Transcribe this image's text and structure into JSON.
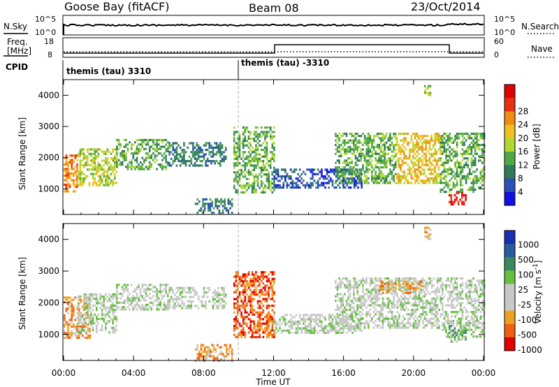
{
  "header": {
    "station": "Goose Bay (fitACF)",
    "beam": "Beam 08",
    "date": "23/Oct/2014"
  },
  "noise_panel": {
    "left_label": "N.Sky",
    "right_label": "N.Search",
    "left_ticks": [
      "10^5",
      "10^0"
    ],
    "right_ticks": [
      "10^5",
      "10^0"
    ]
  },
  "freq_panel": {
    "left_label_line1": "Freq.",
    "left_label_line2": "[MHz]",
    "right_label": "Nave",
    "left_ticks": [
      "18",
      "8"
    ],
    "right_ticks": [
      "60",
      "0"
    ]
  },
  "cpid_panel": {
    "label": "CPID",
    "segments": [
      {
        "text": "themis (tau) 3310",
        "start_hour": 0
      },
      {
        "text": "themis (tau) -3310",
        "start_hour": 10
      }
    ]
  },
  "colors": {
    "power": [
      "#1010e0",
      "#2c4fb8",
      "#2f7a5a",
      "#4fa848",
      "#b0d830",
      "#f0c020",
      "#f08c10",
      "#e83010",
      "#e00000"
    ],
    "velocity": [
      "#1a2fb0",
      "#2a5aa0",
      "#3a8a60",
      "#66c040",
      "#c8c8c8",
      "#c8c8c8",
      "#f0a020",
      "#f06010",
      "#e00000"
    ]
  },
  "chart_data": [
    {
      "type": "heatmap",
      "name": "power",
      "ylabel": "Slant Range [km]",
      "ylim": [
        180,
        4500
      ],
      "xlim": [
        0,
        24
      ],
      "y_ticks": [
        1000,
        2000,
        3000,
        4000
      ],
      "x_ticks": [
        "00:00",
        "04:00",
        "08:00",
        "12:00",
        "16:00",
        "20:00",
        "00:00"
      ],
      "colorbar_label": "Power [dB]",
      "colorbar_ticks": [
        "4",
        "8",
        "12",
        "16",
        "20",
        "24",
        "28"
      ],
      "echo_bands": [
        {
          "start": 0.0,
          "end": 0.8,
          "low": 900,
          "high": 2100,
          "level": 6
        },
        {
          "start": 0.8,
          "end": 3.0,
          "low": 1100,
          "high": 2300,
          "level": 4
        },
        {
          "start": 3.0,
          "end": 6.0,
          "low": 1600,
          "high": 2600,
          "level": 3
        },
        {
          "start": 6.0,
          "end": 9.3,
          "low": 1750,
          "high": 2500,
          "level": 2
        },
        {
          "start": 7.5,
          "end": 9.6,
          "low": 200,
          "high": 700,
          "level": 2
        },
        {
          "start": 9.7,
          "end": 12.0,
          "low": 900,
          "high": 3000,
          "level": 3
        },
        {
          "start": 12.0,
          "end": 17.0,
          "low": 1050,
          "high": 1650,
          "level": 1
        },
        {
          "start": 15.5,
          "end": 19.0,
          "low": 1200,
          "high": 2800,
          "level": 3
        },
        {
          "start": 19.0,
          "end": 21.5,
          "low": 1200,
          "high": 2800,
          "level": 5
        },
        {
          "start": 21.5,
          "end": 24.0,
          "low": 900,
          "high": 2800,
          "level": 3
        },
        {
          "start": 22.0,
          "end": 23.0,
          "low": 500,
          "high": 900,
          "level": 8
        },
        {
          "start": 20.6,
          "end": 21.0,
          "low": 4000,
          "high": 4400,
          "level": 4
        }
      ]
    },
    {
      "type": "heatmap",
      "name": "velocity",
      "ylabel": "Slant Range [km]",
      "xlabel": "Time UT",
      "ylim": [
        180,
        4500
      ],
      "xlim": [
        0,
        24
      ],
      "y_ticks": [
        1000,
        2000,
        3000,
        4000
      ],
      "x_ticks": [
        "00:00",
        "04:00",
        "08:00",
        "12:00",
        "16:00",
        "20:00",
        "00:00"
      ],
      "colorbar_label": "Velocity [m s^-1]",
      "colorbar_ticks": [
        "1000",
        "500",
        "100",
        "25",
        "-25",
        "-100",
        "-500",
        "-1000"
      ],
      "echo_bands": [
        {
          "start": 0.0,
          "end": 1.5,
          "low": 900,
          "high": 2200,
          "level": 6
        },
        {
          "start": 0.8,
          "end": 3.0,
          "low": 1100,
          "high": 2300,
          "level": 4
        },
        {
          "start": 3.0,
          "end": 6.0,
          "low": 1800,
          "high": 2600,
          "level": 4
        },
        {
          "start": 6.0,
          "end": 9.3,
          "low": 1800,
          "high": 2500,
          "level": 4
        },
        {
          "start": 7.5,
          "end": 9.6,
          "low": 200,
          "high": 700,
          "level": 6
        },
        {
          "start": 9.7,
          "end": 12.0,
          "low": 900,
          "high": 3000,
          "level": 7
        },
        {
          "start": 12.0,
          "end": 17.0,
          "low": 1050,
          "high": 1650,
          "level": 4
        },
        {
          "start": 15.5,
          "end": 21.5,
          "low": 1200,
          "high": 2800,
          "level": 4
        },
        {
          "start": 18.0,
          "end": 20.5,
          "low": 2300,
          "high": 2700,
          "level": 6
        },
        {
          "start": 21.5,
          "end": 24.0,
          "low": 900,
          "high": 2800,
          "level": 4
        },
        {
          "start": 22.0,
          "end": 23.0,
          "low": 800,
          "high": 1300,
          "level": 3
        },
        {
          "start": 20.6,
          "end": 21.0,
          "low": 4000,
          "high": 4400,
          "level": 6
        }
      ]
    }
  ]
}
